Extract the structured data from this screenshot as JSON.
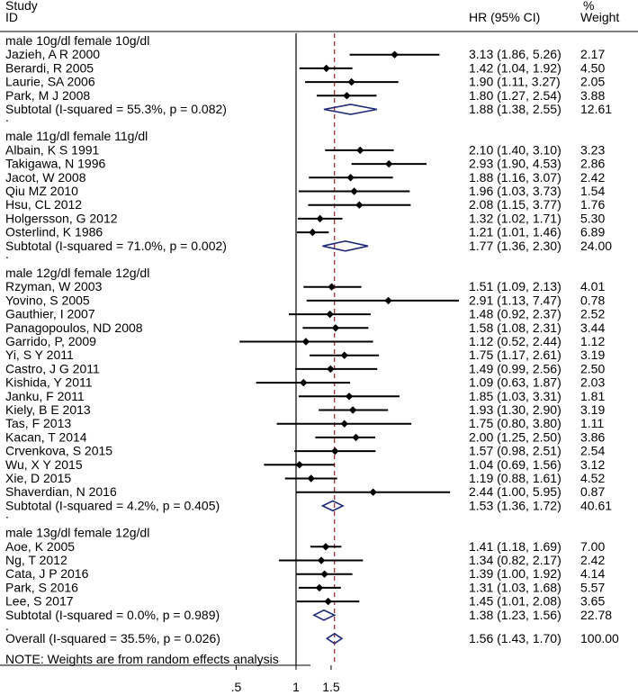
{
  "chart_data": {
    "type": "forest",
    "header": {
      "study": "Study",
      "id": "ID",
      "hr": "HR (95% CI)",
      "pct": "%",
      "weight": "Weight"
    },
    "x_scale": "log",
    "xlim": [
      0.13,
      10
    ],
    "xticks": [
      {
        "value": 0.5,
        "label": ".5"
      },
      {
        "value": 1,
        "label": "1"
      },
      {
        "value": 1.5,
        "label": "1.5"
      }
    ],
    "null_line": 1,
    "overall_line": 1.56,
    "groups": [
      {
        "label": "male 10g/dl female 10g/dl",
        "studies": [
          {
            "name": "Jazieh, A R 2000",
            "hr": 3.13,
            "lo": 1.86,
            "hi": 5.26,
            "hr_text": "3.13 (1.86, 5.26)",
            "weight": 2.17,
            "weight_text": "2.17"
          },
          {
            "name": "Berardi, R 2005",
            "hr": 1.42,
            "lo": 1.04,
            "hi": 1.92,
            "hr_text": "1.42 (1.04, 1.92)",
            "weight": 4.5,
            "weight_text": "4.50"
          },
          {
            "name": "Laurie, SA 2006",
            "hr": 1.9,
            "lo": 1.11,
            "hi": 3.27,
            "hr_text": "1.90 (1.11, 3.27)",
            "weight": 2.05,
            "weight_text": "2.05"
          },
          {
            "name": "Park, M J 2008",
            "hr": 1.8,
            "lo": 1.27,
            "hi": 2.54,
            "hr_text": "1.80 (1.27, 2.54)",
            "weight": 3.88,
            "weight_text": "3.88"
          }
        ],
        "subtotal": {
          "label": "Subtotal  (I-squared = 55.3%, p = 0.082)",
          "hr": 1.88,
          "lo": 1.38,
          "hi": 2.55,
          "hr_text": "1.88 (1.38, 2.55)",
          "weight_text": "12.61"
        }
      },
      {
        "label": "male 11g/dl female 11g/dl",
        "studies": [
          {
            "name": "Albain, K S 1991",
            "hr": 2.1,
            "lo": 1.4,
            "hi": 3.1,
            "hr_text": "2.10 (1.40, 3.10)",
            "weight": 3.23,
            "weight_text": "3.23"
          },
          {
            "name": "Takigawa, N 1996",
            "hr": 2.93,
            "lo": 1.9,
            "hi": 4.53,
            "hr_text": "2.93 (1.90, 4.53)",
            "weight": 2.86,
            "weight_text": "2.86"
          },
          {
            "name": "Jacot, W 2008",
            "hr": 1.88,
            "lo": 1.16,
            "hi": 3.07,
            "hr_text": "1.88 (1.16, 3.07)",
            "weight": 2.42,
            "weight_text": "2.42"
          },
          {
            "name": "Qiu MZ 2010",
            "hr": 1.96,
            "lo": 1.03,
            "hi": 3.73,
            "hr_text": "1.96 (1.03, 3.73)",
            "weight": 1.54,
            "weight_text": "1.54"
          },
          {
            "name": "Hsu, CL 2012",
            "hr": 2.08,
            "lo": 1.15,
            "hi": 3.77,
            "hr_text": "2.08 (1.15, 3.77)",
            "weight": 1.76,
            "weight_text": "1.76"
          },
          {
            "name": "Holgersson, G 2012",
            "hr": 1.32,
            "lo": 1.02,
            "hi": 1.71,
            "hr_text": "1.32 (1.02, 1.71)",
            "weight": 5.3,
            "weight_text": "5.30"
          },
          {
            "name": "Osterlind, K 1986",
            "hr": 1.21,
            "lo": 1.01,
            "hi": 1.46,
            "hr_text": "1.21 (1.01, 1.46)",
            "weight": 6.89,
            "weight_text": "6.89"
          }
        ],
        "subtotal": {
          "label": "Subtotal  (I-squared = 71.0%, p = 0.002)",
          "hr": 1.77,
          "lo": 1.36,
          "hi": 2.3,
          "hr_text": "1.77 (1.36, 2.30)",
          "weight_text": "24.00"
        }
      },
      {
        "label": "male 12g/dl female 12g/dl",
        "studies": [
          {
            "name": "Rzyman, W 2003",
            "hr": 1.51,
            "lo": 1.09,
            "hi": 2.13,
            "hr_text": "1.51 (1.09, 2.13)",
            "weight": 4.01,
            "weight_text": "4.01"
          },
          {
            "name": "Yovino, S 2005",
            "hr": 2.91,
            "lo": 1.13,
            "hi": 7.47,
            "hr_text": "2.91 (1.13, 7.47)",
            "weight": 0.78,
            "weight_text": "0.78"
          },
          {
            "name": "Gauthier, I 2007",
            "hr": 1.48,
            "lo": 0.92,
            "hi": 2.37,
            "hr_text": "1.48 (0.92, 2.37)",
            "weight": 2.52,
            "weight_text": "2.52"
          },
          {
            "name": "Panagopoulos, ND 2008",
            "hr": 1.58,
            "lo": 1.08,
            "hi": 2.31,
            "hr_text": "1.58 (1.08, 2.31)",
            "weight": 3.44,
            "weight_text": "3.44"
          },
          {
            "name": "Garrido, P,  2009",
            "hr": 1.12,
            "lo": 0.52,
            "hi": 2.44,
            "hr_text": "1.12 (0.52, 2.44)",
            "weight": 1.12,
            "weight_text": "1.12"
          },
          {
            "name": "Yi, S Y 2011",
            "hr": 1.75,
            "lo": 1.17,
            "hi": 2.61,
            "hr_text": "1.75 (1.17, 2.61)",
            "weight": 3.19,
            "weight_text": "3.19"
          },
          {
            "name": "Castro, J G 2011",
            "hr": 1.49,
            "lo": 0.99,
            "hi": 2.56,
            "hr_text": "1.49 (0.99, 2.56)",
            "weight": 2.5,
            "weight_text": "2.50"
          },
          {
            "name": "Kishida, Y 2011",
            "hr": 1.09,
            "lo": 0.63,
            "hi": 1.87,
            "hr_text": "1.09 (0.63, 1.87)",
            "weight": 2.03,
            "weight_text": "2.03"
          },
          {
            "name": "Janku, F 2011",
            "hr": 1.85,
            "lo": 1.03,
            "hi": 3.31,
            "hr_text": "1.85 (1.03, 3.31)",
            "weight": 1.81,
            "weight_text": "1.81"
          },
          {
            "name": "Kiely, B E 2013",
            "hr": 1.93,
            "lo": 1.3,
            "hi": 2.9,
            "hr_text": "1.93 (1.30, 2.90)",
            "weight": 3.19,
            "weight_text": "3.19"
          },
          {
            "name": "Tas, F 2013",
            "hr": 1.75,
            "lo": 0.8,
            "hi": 3.8,
            "hr_text": "1.75 (0.80, 3.80)",
            "weight": 1.11,
            "weight_text": "1.11"
          },
          {
            "name": "Kacan, T 2014",
            "hr": 2.0,
            "lo": 1.25,
            "hi": 2.5,
            "hr_text": "2.00 (1.25, 2.50)",
            "weight": 3.86,
            "weight_text": "3.86"
          },
          {
            "name": "Crvenkova, S 2015",
            "hr": 1.57,
            "lo": 0.98,
            "hi": 2.51,
            "hr_text": "1.57 (0.98, 2.51)",
            "weight": 2.54,
            "weight_text": "2.54"
          },
          {
            "name": "Wu, X Y 2015",
            "hr": 1.04,
            "lo": 0.69,
            "hi": 1.56,
            "hr_text": "1.04 (0.69, 1.56)",
            "weight": 3.12,
            "weight_text": "3.12"
          },
          {
            "name": "Xie, D 2015",
            "hr": 1.19,
            "lo": 0.88,
            "hi": 1.61,
            "hr_text": "1.19 (0.88, 1.61)",
            "weight": 4.52,
            "weight_text": "4.52"
          },
          {
            "name": "Shaverdian, N 2016",
            "hr": 2.44,
            "lo": 1.0,
            "hi": 5.95,
            "hr_text": "2.44 (1.00, 5.95)",
            "weight": 0.87,
            "weight_text": "0.87"
          }
        ],
        "subtotal": {
          "label": "Subtotal  (I-squared = 4.2%, p = 0.405)",
          "hr": 1.53,
          "lo": 1.36,
          "hi": 1.72,
          "hr_text": "1.53 (1.36, 1.72)",
          "weight_text": "40.61"
        }
      },
      {
        "label": "male 13g/dl female 12g/dl",
        "studies": [
          {
            "name": "Aoe, K 2005",
            "hr": 1.41,
            "lo": 1.18,
            "hi": 1.69,
            "hr_text": "1.41 (1.18, 1.69)",
            "weight": 7.0,
            "weight_text": "7.00"
          },
          {
            "name": "Ng, T 2012",
            "hr": 1.34,
            "lo": 0.82,
            "hi": 2.17,
            "hr_text": "1.34 (0.82, 2.17)",
            "weight": 2.42,
            "weight_text": "2.42"
          },
          {
            "name": "Cata, J P 2016",
            "hr": 1.39,
            "lo": 1.0,
            "hi": 1.92,
            "hr_text": "1.39 (1.00, 1.92)",
            "weight": 4.14,
            "weight_text": "4.14"
          },
          {
            "name": "Park, S 2016",
            "hr": 1.31,
            "lo": 1.03,
            "hi": 1.68,
            "hr_text": "1.31 (1.03, 1.68)",
            "weight": 5.57,
            "weight_text": "5.57"
          },
          {
            "name": "Lee, S 2017",
            "hr": 1.45,
            "lo": 1.01,
            "hi": 2.08,
            "hr_text": "1.45 (1.01, 2.08)",
            "weight": 3.65,
            "weight_text": "3.65"
          }
        ],
        "subtotal": {
          "label": "Subtotal  (I-squared = 0.0%, p = 0.989)",
          "hr": 1.38,
          "lo": 1.23,
          "hi": 1.56,
          "hr_text": "1.38 (1.23, 1.56)",
          "weight_text": "22.78"
        }
      }
    ],
    "overall": {
      "label": "Overall  (I-squared = 35.5%, p = 0.026)",
      "hr": 1.56,
      "lo": 1.43,
      "hi": 1.7,
      "hr_text": "1.56 (1.43, 1.70)",
      "weight_text": "100.00"
    },
    "note": "NOTE: Weights are from random effects analysis",
    "group_separator": ".",
    "colors": {
      "diamond": "#1f2a78",
      "overall_line": "#a02030",
      "ink": "#000000"
    }
  }
}
